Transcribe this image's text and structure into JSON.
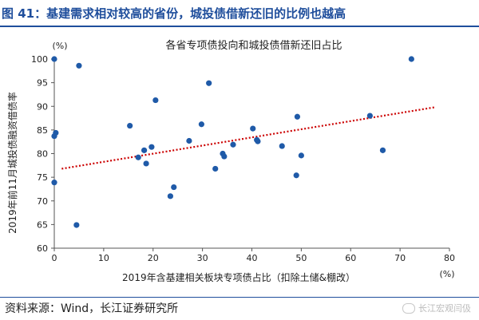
{
  "figure": {
    "title": "图 41：基建需求相对较高的省份，城投债借新还旧的比例也越高",
    "source": "资料来源：Wind，长江证券研究所",
    "watermark": "长江宏观闫伋"
  },
  "chart_data": {
    "type": "scatter",
    "title": "各省专项债投向和城投债借新还旧占比",
    "xlabel": "2019年含基建相关板块专项债占比（扣除土储&棚改）",
    "ylabel": "2019年前11月城投债融资借债率",
    "xunit": "(%)",
    "yunit": "(%)",
    "xlim": [
      0,
      80
    ],
    "ylim": [
      60,
      100
    ],
    "xticks": [
      0,
      10,
      20,
      30,
      40,
      50,
      60,
      70,
      80
    ],
    "yticks": [
      60,
      65,
      70,
      75,
      80,
      85,
      90,
      95,
      100
    ],
    "grid": false,
    "point_color": "#1f5aa8",
    "trendline": {
      "color": "#cc0000",
      "style": "dotted",
      "x": [
        1.5,
        77
      ],
      "y": [
        76.8,
        89.8
      ]
    },
    "points": [
      {
        "x": 0,
        "y": 100
      },
      {
        "x": 5,
        "y": 98.6
      },
      {
        "x": 0.3,
        "y": 84.4
      },
      {
        "x": 0,
        "y": 83.7
      },
      {
        "x": 0,
        "y": 73.9
      },
      {
        "x": 4.5,
        "y": 64.9
      },
      {
        "x": 15.3,
        "y": 85.9
      },
      {
        "x": 17,
        "y": 79.2
      },
      {
        "x": 18.2,
        "y": 80.7
      },
      {
        "x": 18.6,
        "y": 77.9
      },
      {
        "x": 19.7,
        "y": 81.4
      },
      {
        "x": 20.5,
        "y": 91.3
      },
      {
        "x": 23.5,
        "y": 71
      },
      {
        "x": 24.2,
        "y": 72.9
      },
      {
        "x": 27.3,
        "y": 82.7
      },
      {
        "x": 29.8,
        "y": 86.2
      },
      {
        "x": 31.3,
        "y": 94.9
      },
      {
        "x": 32.6,
        "y": 76.8
      },
      {
        "x": 34.1,
        "y": 80
      },
      {
        "x": 34.4,
        "y": 79.4
      },
      {
        "x": 36.2,
        "y": 81.9
      },
      {
        "x": 40.2,
        "y": 85.3
      },
      {
        "x": 41,
        "y": 82.9
      },
      {
        "x": 41.2,
        "y": 82.6
      },
      {
        "x": 46.1,
        "y": 81.6
      },
      {
        "x": 49,
        "y": 75.4
      },
      {
        "x": 49.2,
        "y": 87.8
      },
      {
        "x": 50,
        "y": 79.6
      },
      {
        "x": 63.9,
        "y": 88
      },
      {
        "x": 66.5,
        "y": 80.7
      },
      {
        "x": 72.3,
        "y": 100
      }
    ]
  }
}
